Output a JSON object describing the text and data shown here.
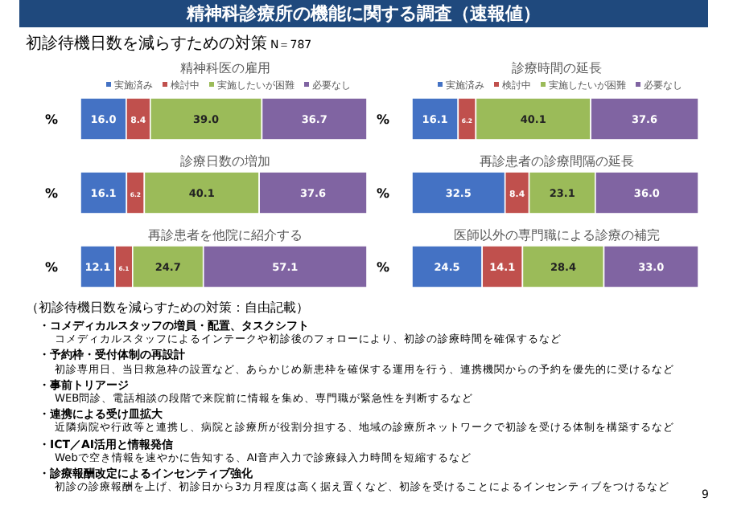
{
  "chart_data": [
    {
      "type": "other",
      "title": "精神科診療所の機能に関する調査（速報値）",
      "subtitle": "初診待機日数を減らすための対策",
      "annotations": [
        "N＝787",
        "9"
      ]
    },
    {
      "type": "bar",
      "orientation": "horizontal",
      "stacked": true,
      "data_labels": true,
      "legend": "top",
      "title": "精神科医の雇用",
      "categories": [
        "%"
      ],
      "series": [
        {
          "name": "実施済み",
          "color": "#4472c4",
          "values": [
            16.0
          ],
          "value_labels": [
            "16.0"
          ]
        },
        {
          "name": "検討中",
          "color": "#c0504d",
          "values": [
            8.4
          ]
        },
        {
          "name": "実施したいが困難",
          "color": "#9bbb59",
          "values": [
            39.0
          ],
          "value_labels": [
            "39.0"
          ]
        },
        {
          "name": "必要なし",
          "color": "#8064a2",
          "values": [
            36.7
          ]
        }
      ]
    },
    {
      "type": "bar",
      "orientation": "horizontal",
      "stacked": true,
      "data_labels": true,
      "legend": "top",
      "title": "診療時間の延長",
      "categories": [
        "%"
      ],
      "series": [
        {
          "name": "実施済み",
          "color": "#4472c4",
          "values": [
            16.1
          ]
        },
        {
          "name": "検討中",
          "color": "#c0504d",
          "values": [
            6.2
          ]
        },
        {
          "name": "実施したいが困難",
          "color": "#9bbb59",
          "values": [
            40.1
          ]
        },
        {
          "name": "必要なし",
          "color": "#8064a2",
          "values": [
            37.6
          ]
        }
      ]
    },
    {
      "type": "bar",
      "orientation": "horizontal",
      "stacked": true,
      "data_labels": true,
      "title": "診療日数の増加",
      "categories": [
        "%"
      ],
      "series": [
        {
          "color": "#4472c4",
          "values": [
            16.1
          ]
        },
        {
          "color": "#c0504d",
          "values": [
            6.2
          ]
        },
        {
          "color": "#9bbb59",
          "values": [
            40.1
          ]
        },
        {
          "color": "#8064a2",
          "values": [
            37.6
          ]
        }
      ]
    },
    {
      "type": "bar",
      "orientation": "horizontal",
      "stacked": true,
      "data_labels": true,
      "title": "再診患者の診療間隔の延長",
      "categories": [
        "%"
      ],
      "series": [
        {
          "color": "#4472c4",
          "values": [
            32.5
          ]
        },
        {
          "color": "#c0504d",
          "values": [
            8.4
          ]
        },
        {
          "color": "#9bbb59",
          "values": [
            23.1
          ]
        },
        {
          "color": "#8064a2",
          "values": [
            36.0
          ],
          "value_labels": [
            "36.0"
          ]
        }
      ]
    },
    {
      "type": "bar",
      "orientation": "horizontal",
      "stacked": true,
      "data_labels": true,
      "title": "再診患者を他院に紹介する",
      "categories": [
        "%"
      ],
      "series": [
        {
          "color": "#4472c4",
          "values": [
            12.1
          ]
        },
        {
          "color": "#c0504d",
          "values": [
            6.1
          ]
        },
        {
          "color": "#9bbb59",
          "values": [
            24.7
          ]
        },
        {
          "color": "#8064a2",
          "values": [
            57.1
          ]
        }
      ]
    },
    {
      "type": "bar",
      "orientation": "horizontal",
      "stacked": true,
      "data_labels": true,
      "title": "医師以外の専門職による診療の補完",
      "categories": [
        "%"
      ],
      "series": [
        {
          "color": "#4472c4",
          "values": [
            24.5
          ]
        },
        {
          "color": "#c0504d",
          "values": [
            14.1
          ]
        },
        {
          "color": "#9bbb59",
          "values": [
            28.4
          ]
        },
        {
          "color": "#8064a2",
          "values": [
            33.0
          ],
          "value_labels": [
            "33.0"
          ]
        }
      ]
    },
    {
      "type": "other",
      "title": "（初診待機日数を減らすための対策：自由記載）",
      "annotations": [
        "・コメディカルスタッフの増員・配置、タスクシフト",
        "コメディカルスタッフによるインテークや初診後のフォローにより、初診の診療時間を確保するなど",
        "・予約枠・受付体制の再設計",
        "初診専用日、当日救急枠の設置など、あらかじめ新患枠を確保する運用を行う、連携機関からの予約を優先的に受けるなど",
        "・事前トリアージ",
        "WEB問診、電話相談の段階で来院前に情報を集め、専門職が緊急性を判断するなど",
        "・連携による受け皿拡大",
        "近隣病院や行政等と連携し、病院と診療所が役割分担する、地域の診療所ネットワークで初診を受ける体制を構築するなど",
        "・ICT／AI活用と情報発信",
        "Webで空き情報を速やかに告知する、AI音声入力で診療録入力時間を短縮するなど",
        "・診療報酬改定によるインセンティブ強化",
        "初診の診療報酬を上げ、初診日から3カ月程度は高く据え置くなど、初診を受けることによるインセンティブをつけるなど"
      ]
    }
  ]
}
